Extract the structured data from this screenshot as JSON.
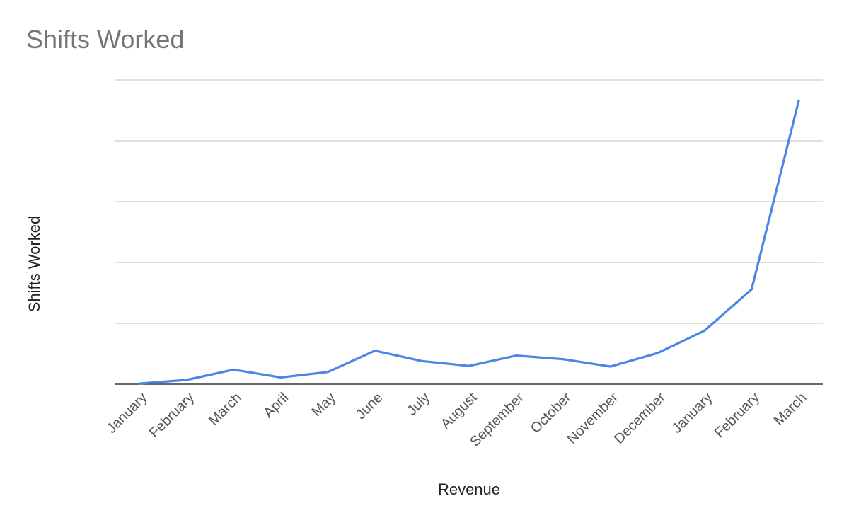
{
  "chart_data": {
    "type": "line",
    "title": "Shifts Worked",
    "xlabel": "Revenue",
    "ylabel": "Shifts Worked",
    "categories": [
      "January",
      "February",
      "March",
      "April",
      "May",
      "June",
      "July",
      "August",
      "September",
      "October",
      "November",
      "December",
      "January",
      "February",
      "March"
    ],
    "series": [
      {
        "values": [
          0.1,
          0.7,
          2.4,
          1.1,
          2.0,
          5.5,
          3.8,
          3.0,
          4.7,
          4.1,
          2.9,
          5.1,
          8.8,
          15.6,
          46.6
        ]
      }
    ],
    "ylim": [
      0,
      50
    ],
    "yticks": [
      0,
      10,
      20,
      30,
      40,
      50
    ],
    "show_y_tick_labels": false,
    "grid": true,
    "legend": "none",
    "line_color": "#4a86e8"
  }
}
